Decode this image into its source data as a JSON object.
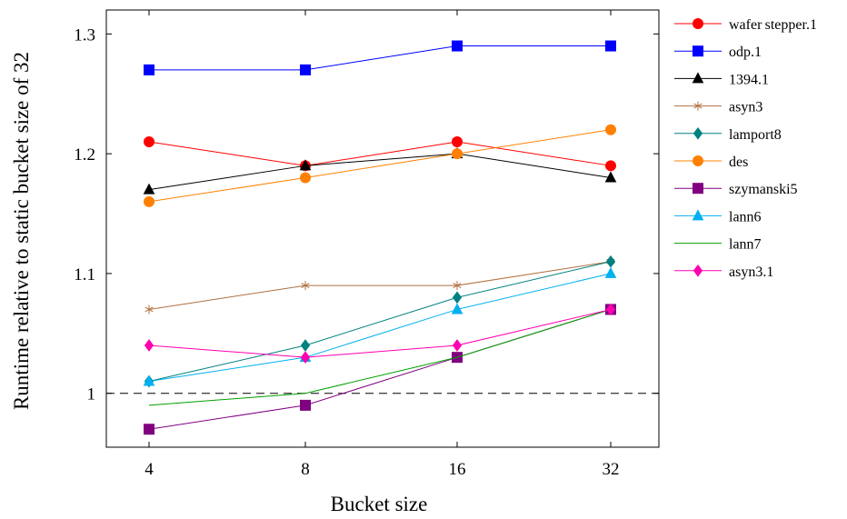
{
  "chart_data": {
    "type": "line",
    "xlabel": "Bucket size",
    "ylabel": "Runtime relative to static bucket size of 32",
    "categories": [
      "4",
      "8",
      "16",
      "32"
    ],
    "ylim": [
      0.955,
      1.32
    ],
    "yticks": [
      1,
      1.1,
      1.2,
      1.3
    ],
    "ytick_labels": [
      "1",
      "1.1",
      "1.2",
      "1.3"
    ],
    "grid": false,
    "legend_position": "right",
    "reference_line": {
      "y": 1,
      "style": "dashed"
    },
    "series": [
      {
        "name": "wafer_stepper.1",
        "legend_label": "wafer stepper.1",
        "color": "#ff0000",
        "marker": "circle",
        "values": [
          1.21,
          1.19,
          1.21,
          1.19
        ]
      },
      {
        "name": "odp.1",
        "legend_label": "odp.1",
        "color": "#0000ff",
        "marker": "square",
        "values": [
          1.27,
          1.27,
          1.29,
          1.29
        ]
      },
      {
        "name": "1394.1",
        "legend_label": "1394.1",
        "color": "#000000",
        "marker": "triangle",
        "values": [
          1.17,
          1.19,
          1.2,
          1.18
        ]
      },
      {
        "name": "asyn3",
        "legend_label": "asyn3",
        "color": "#b07040",
        "marker": "star",
        "values": [
          1.07,
          1.09,
          1.09,
          1.11
        ]
      },
      {
        "name": "lamport8",
        "legend_label": "lamport8",
        "color": "#008080",
        "marker": "diamond",
        "values": [
          1.01,
          1.04,
          1.08,
          1.11
        ]
      },
      {
        "name": "des",
        "legend_label": "des",
        "color": "#ff8000",
        "marker": "circle",
        "values": [
          1.16,
          1.18,
          1.2,
          1.22
        ]
      },
      {
        "name": "szymanski5",
        "legend_label": "szymanski5",
        "color": "#800080",
        "marker": "square",
        "values": [
          0.97,
          0.99,
          1.03,
          1.07
        ]
      },
      {
        "name": "lann6",
        "legend_label": "lann6",
        "color": "#00b0f0",
        "marker": "triangle",
        "values": [
          1.01,
          1.03,
          1.07,
          1.1
        ]
      },
      {
        "name": "lann7",
        "legend_label": "lann7",
        "color": "#00a000",
        "marker": "none",
        "values": [
          0.99,
          1.0,
          1.03,
          1.07
        ]
      },
      {
        "name": "asyn3.1",
        "legend_label": "asyn3.1",
        "color": "#ff00b0",
        "marker": "diamond",
        "values": [
          1.04,
          1.03,
          1.04,
          1.07
        ]
      }
    ]
  }
}
